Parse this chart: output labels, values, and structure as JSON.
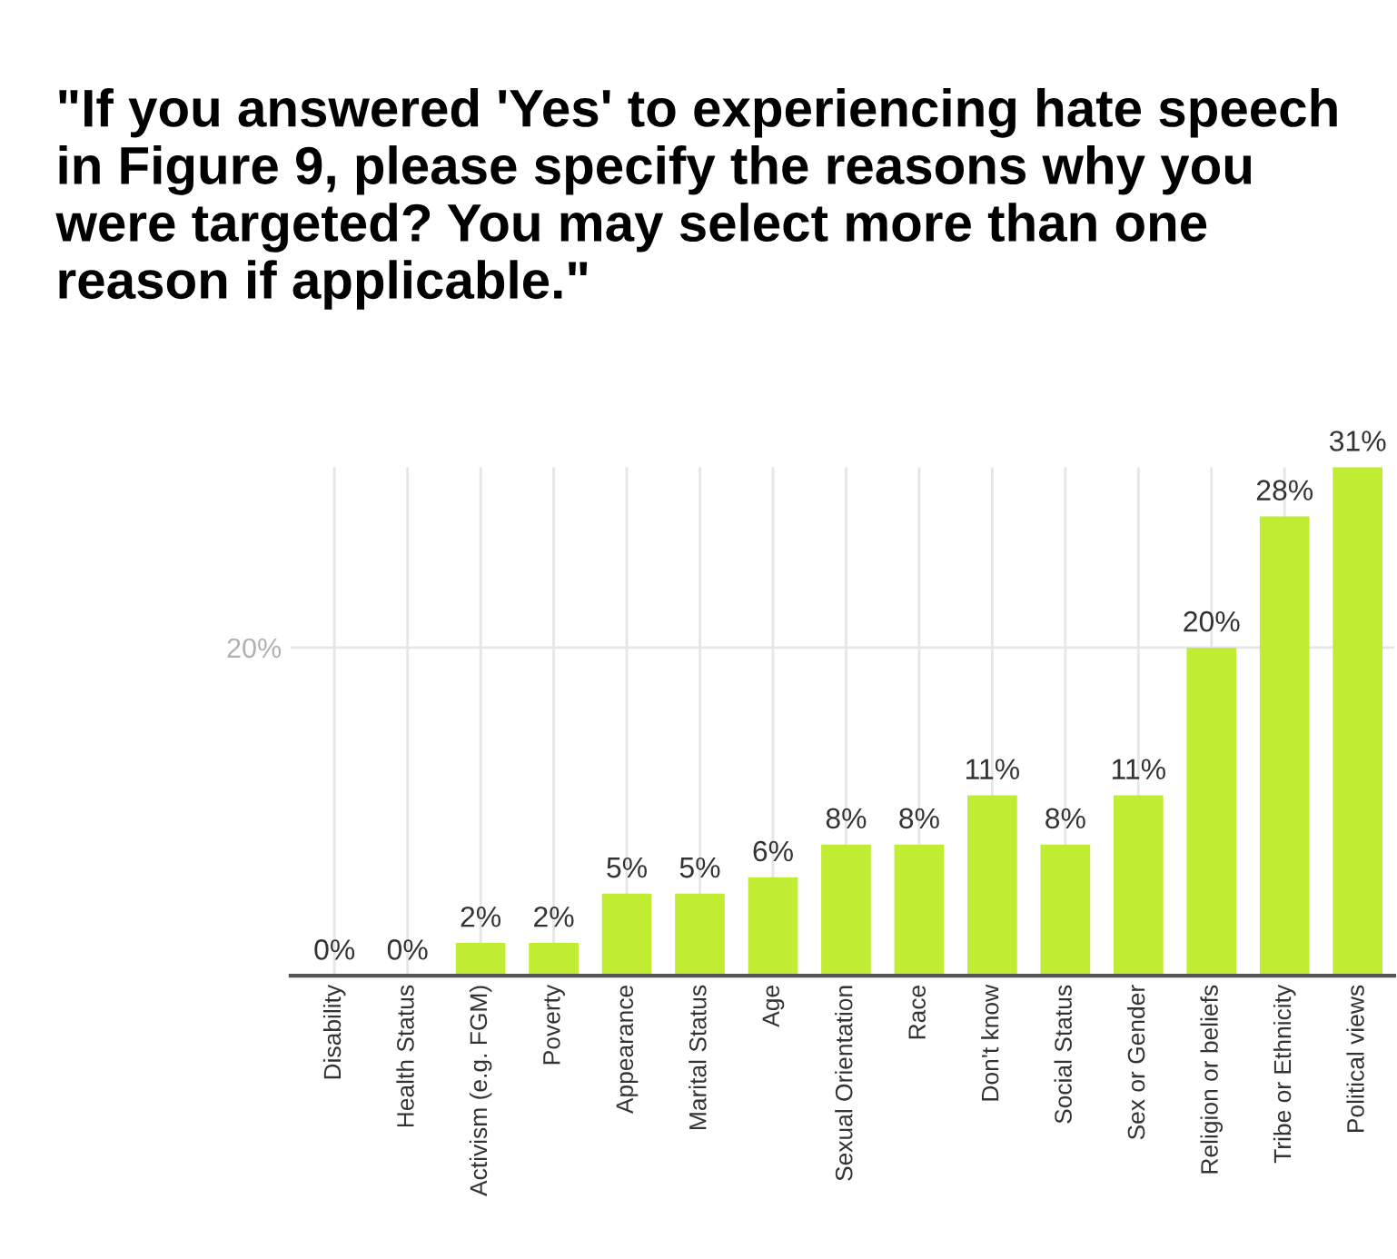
{
  "chart_data": {
    "type": "bar",
    "title": "\"If you answered 'Yes' to experiencing hate speech in Figure 9, please specify the reasons why you were targeted? You may select more than one reason if applicable.\"",
    "categories": [
      "Disability",
      "Health Status",
      "Activism (e.g. FGM)",
      "Poverty",
      "Appearance",
      "Marital Status",
      "Age",
      "Sexual Orientation",
      "Race",
      "Don't know",
      "Social Status",
      "Sex or Gender",
      "Religion or beliefs",
      "Tribe or Ethnicity",
      "Political views"
    ],
    "values": [
      0,
      0,
      2,
      2,
      5,
      5,
      6,
      8,
      8,
      11,
      8,
      11,
      20,
      28,
      31
    ],
    "value_labels": [
      "0%",
      "0%",
      "2%",
      "2%",
      "5%",
      "5%",
      "6%",
      "8%",
      "8%",
      "11%",
      "8%",
      "11%",
      "20%",
      "28%",
      "31%"
    ],
    "color": "#c0ec34",
    "ylim": [
      0,
      31
    ],
    "yticks": [
      {
        "value": 20,
        "label": "20%"
      }
    ],
    "grid": true
  }
}
